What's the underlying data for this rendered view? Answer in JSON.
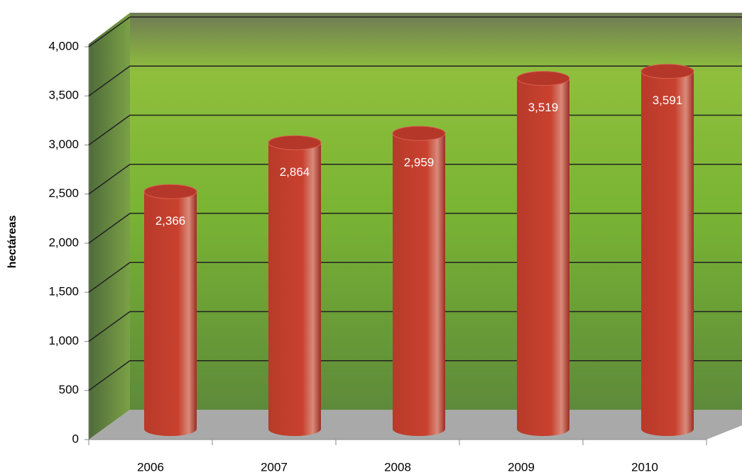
{
  "chart_data": {
    "type": "bar",
    "y_label": "hectáreas",
    "categories": [
      "2006",
      "2007",
      "2008",
      "2009",
      "2010"
    ],
    "values": [
      2366,
      2864,
      2959,
      3519,
      3591
    ],
    "value_labels": [
      "2,366",
      "2,864",
      "2,959",
      "3,519",
      "3,591"
    ],
    "color": "#c0392b",
    "ylim": [
      0,
      4000
    ],
    "yticks": [
      0,
      500,
      {
        "value": 1000,
        "label": "1,000"
      },
      {
        "value": 1500,
        "label": "1,500"
      },
      {
        "value": 2000,
        "label": "2,000"
      },
      {
        "value": 2500,
        "label": "2,500"
      },
      {
        "value": 3000,
        "label": "3,000"
      },
      {
        "value": 3500,
        "label": "3,500"
      },
      {
        "value": 4000,
        "label": "4,000"
      }
    ],
    "grid": true
  }
}
